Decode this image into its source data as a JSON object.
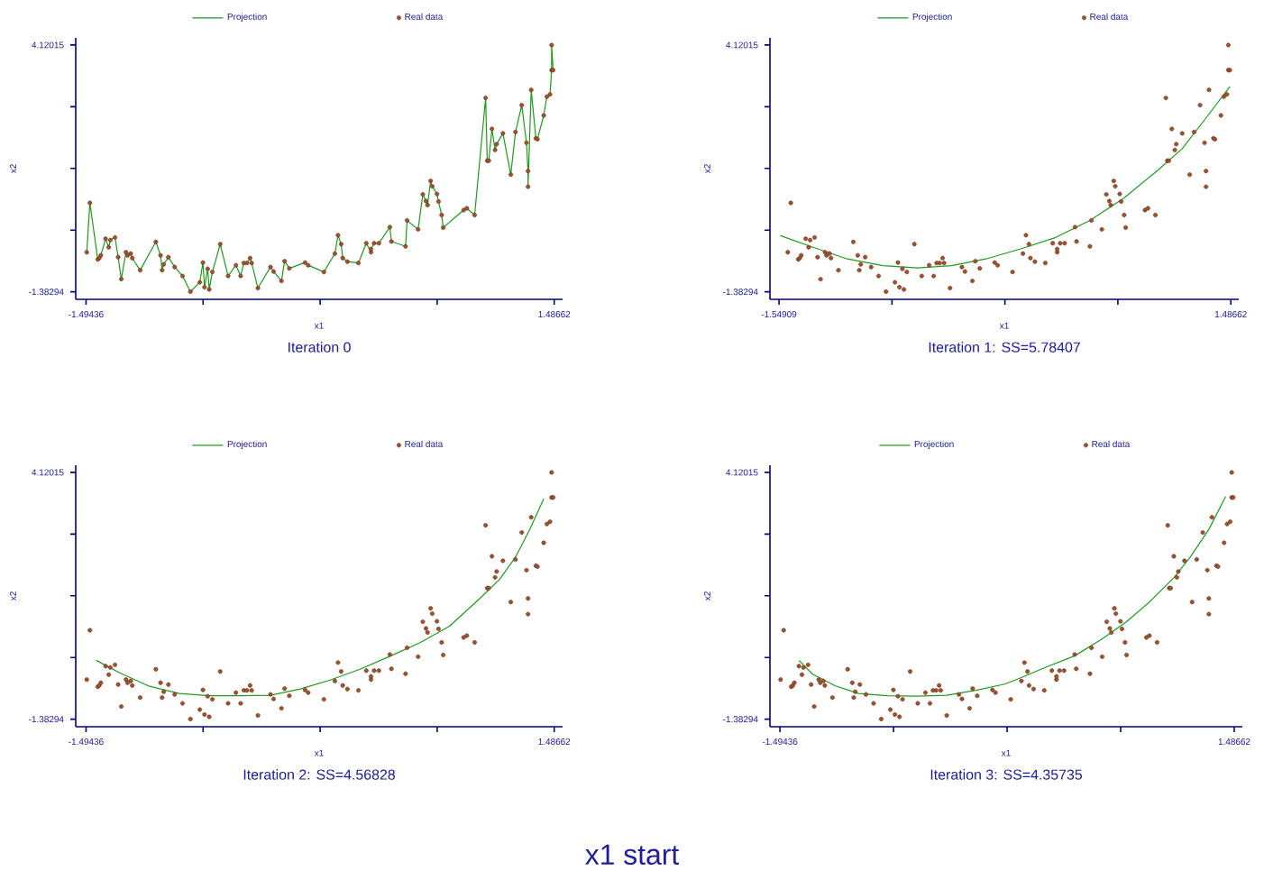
{
  "chart_data": [
    {
      "type": "scatter",
      "title": "Iteration 0",
      "xlabel": "x1",
      "ylabel": "x2",
      "xlim": [
        -1.56,
        1.54
      ],
      "ylim": [
        -1.55,
        4.28
      ],
      "xticks": [
        -1.49436,
        {
          "value": -0.74912,
          "label": null
        },
        {
          "value": -0.00387,
          "label": null
        },
        {
          "value": 0.74137,
          "label": null
        },
        1.48662
      ],
      "yticks": [
        -1.38294,
        {
          "value": -0.00717,
          "label": null
        },
        {
          "value": 1.36861,
          "label": null
        },
        {
          "value": 2.74438,
          "label": null
        },
        4.12015
      ],
      "grid": false,
      "legend": "top",
      "series": [
        {
          "name": "Projection",
          "type": "line",
          "color": "#1f9a1f",
          "marker": "none",
          "x": [
            -1.49,
            -1.47,
            -1.42,
            -1.41,
            -1.4,
            -1.37,
            -1.35,
            -1.34,
            -1.31,
            -1.29,
            -1.27,
            -1.24,
            -1.23,
            -1.21,
            -1.2,
            -1.15,
            -1.05,
            -1.02,
            -1.01,
            -1.0,
            -0.97,
            -0.93,
            -0.88,
            -0.83,
            -0.77,
            -0.75,
            -0.74,
            -0.72,
            -0.71,
            -0.69,
            -0.64,
            -0.59,
            -0.54,
            -0.51,
            -0.49,
            -0.47,
            -0.45,
            -0.44,
            -0.4,
            -0.32,
            -0.3,
            -0.25,
            -0.23,
            -0.2,
            -0.1,
            -0.08,
            0.02,
            0.09,
            0.11,
            0.13,
            0.14,
            0.17,
            0.24,
            0.29,
            0.32,
            0.32,
            0.34,
            0.37,
            0.44,
            0.45,
            0.54,
            0.55,
            0.62,
            0.65,
            0.67,
            0.68,
            0.7,
            0.71,
            0.74,
            0.75,
            0.77,
            0.78,
            0.91,
            0.93,
            0.98,
            1.05,
            1.06,
            1.07,
            1.09,
            1.11,
            1.12,
            1.16,
            1.21,
            1.24,
            1.28,
            1.31,
            1.32,
            1.32,
            1.34,
            1.37,
            1.38,
            1.42,
            1.44,
            1.46,
            1.47,
            1.47,
            1.48
          ],
          "values": [
            -0.5,
            0.6,
            -0.66,
            -0.63,
            -0.57,
            -0.2,
            -0.39,
            -0.23,
            -0.17,
            -0.61,
            -1.1,
            -0.5,
            -0.57,
            -0.53,
            -0.63,
            -0.9,
            -0.27,
            -0.57,
            -0.9,
            -0.77,
            -0.61,
            -0.83,
            -1.03,
            -1.38,
            -1.17,
            -0.73,
            -1.28,
            -0.87,
            -1.33,
            -0.94,
            -0.32,
            -1.03,
            -0.79,
            -1.03,
            -0.74,
            -0.74,
            -0.63,
            -0.74,
            -1.3,
            -0.83,
            -0.93,
            -1.14,
            -0.7,
            -0.86,
            -0.73,
            -0.79,
            -0.94,
            -0.53,
            -0.12,
            -0.32,
            -0.63,
            -0.71,
            -0.74,
            -0.3,
            -0.5,
            -0.43,
            -0.3,
            -0.3,
            0.06,
            -0.26,
            -0.37,
            0.21,
            0.01,
            0.79,
            0.64,
            0.55,
            1.09,
            0.97,
            0.8,
            0.63,
            0.33,
            0.05,
            0.44,
            0.48,
            0.33,
            2.94,
            1.54,
            1.54,
            2.25,
            1.78,
            1.91,
            2.15,
            1.23,
            2.18,
            2.78,
            1.94,
            1.31,
            0.96,
            3.12,
            2.04,
            2.02,
            2.55,
            2.97,
            3.02,
            3.56,
            4.12,
            3.56
          ]
        },
        {
          "name": "Real data",
          "type": "scatter",
          "color": "#a0522d",
          "marker": "circle",
          "x": [
            -1.49,
            -1.47,
            -1.42,
            -1.41,
            -1.4,
            -1.37,
            -1.35,
            -1.34,
            -1.31,
            -1.29,
            -1.27,
            -1.24,
            -1.23,
            -1.21,
            -1.2,
            -1.15,
            -1.05,
            -1.02,
            -1.01,
            -1.0,
            -0.97,
            -0.93,
            -0.88,
            -0.83,
            -0.77,
            -0.75,
            -0.74,
            -0.72,
            -0.71,
            -0.69,
            -0.64,
            -0.59,
            -0.54,
            -0.51,
            -0.49,
            -0.47,
            -0.45,
            -0.44,
            -0.4,
            -0.32,
            -0.3,
            -0.25,
            -0.23,
            -0.2,
            -0.1,
            -0.08,
            0.02,
            0.09,
            0.11,
            0.13,
            0.14,
            0.17,
            0.24,
            0.29,
            0.32,
            0.32,
            0.34,
            0.37,
            0.44,
            0.45,
            0.54,
            0.55,
            0.62,
            0.65,
            0.67,
            0.68,
            0.7,
            0.71,
            0.74,
            0.75,
            0.77,
            0.78,
            0.91,
            0.93,
            0.98,
            1.05,
            1.06,
            1.07,
            1.09,
            1.11,
            1.12,
            1.16,
            1.21,
            1.24,
            1.28,
            1.31,
            1.32,
            1.32,
            1.34,
            1.37,
            1.38,
            1.42,
            1.44,
            1.46,
            1.47,
            1.47,
            1.48
          ],
          "values": [
            -0.5,
            0.6,
            -0.66,
            -0.63,
            -0.57,
            -0.2,
            -0.39,
            -0.23,
            -0.17,
            -0.61,
            -1.1,
            -0.5,
            -0.57,
            -0.53,
            -0.63,
            -0.9,
            -0.27,
            -0.57,
            -0.9,
            -0.77,
            -0.61,
            -0.83,
            -1.03,
            -1.38,
            -1.17,
            -0.73,
            -1.28,
            -0.87,
            -1.33,
            -0.94,
            -0.32,
            -1.03,
            -0.79,
            -1.03,
            -0.74,
            -0.74,
            -0.63,
            -0.74,
            -1.3,
            -0.83,
            -0.93,
            -1.14,
            -0.7,
            -0.86,
            -0.73,
            -0.79,
            -0.94,
            -0.53,
            -0.12,
            -0.32,
            -0.63,
            -0.71,
            -0.74,
            -0.3,
            -0.5,
            -0.43,
            -0.3,
            -0.3,
            0.06,
            -0.26,
            -0.37,
            0.21,
            0.01,
            0.79,
            0.64,
            0.55,
            1.09,
            0.97,
            0.8,
            0.63,
            0.33,
            0.05,
            0.44,
            0.48,
            0.33,
            2.94,
            1.54,
            1.54,
            2.25,
            1.78,
            1.91,
            2.15,
            1.23,
            2.18,
            2.78,
            1.94,
            1.31,
            0.96,
            3.12,
            2.04,
            2.02,
            2.55,
            2.97,
            3.02,
            3.56,
            4.12,
            3.56
          ]
        }
      ]
    },
    {
      "type": "scatter",
      "title": "Iteration 1: SS=5.78407",
      "xlabel": "x1",
      "ylabel": "x2",
      "xlim": [
        -1.61,
        1.54
      ],
      "ylim": [
        -1.55,
        4.28
      ],
      "xticks": [
        -1.54909,
        {
          "value": -0.79016,
          "label": null
        },
        {
          "value": -0.03123,
          "label": null
        },
        {
          "value": 0.7277,
          "label": null
        },
        1.48662
      ],
      "yticks": [
        -1.38294,
        {
          "value": -0.00717,
          "label": null
        },
        {
          "value": 1.36861,
          "label": null
        },
        {
          "value": 2.74438,
          "label": null
        },
        4.12015
      ],
      "grid": false,
      "legend": "top",
      "series": [
        {
          "name": "Projection",
          "type": "line",
          "color": "#1f9a1f",
          "marker": "none",
          "x": [
            -1.54,
            -1.32,
            -1.09,
            -0.85,
            -0.62,
            -0.39,
            -0.16,
            0.08,
            0.31,
            0.54,
            0.77,
            1.0,
            1.16,
            1.31,
            1.48
          ],
          "values": [
            -0.13,
            -0.39,
            -0.65,
            -0.8,
            -0.85,
            -0.8,
            -0.65,
            -0.42,
            -0.17,
            0.21,
            0.71,
            1.34,
            1.81,
            2.45,
            3.19
          ]
        },
        {
          "name": "Real data",
          "type": "scatter",
          "color": "#a0522d",
          "marker": "circle",
          "x": [
            -1.49,
            -1.47,
            -1.42,
            -1.41,
            -1.4,
            -1.37,
            -1.35,
            -1.34,
            -1.31,
            -1.29,
            -1.27,
            -1.24,
            -1.23,
            -1.21,
            -1.2,
            -1.15,
            -1.05,
            -1.02,
            -1.01,
            -1.0,
            -0.97,
            -0.93,
            -0.88,
            -0.83,
            -0.77,
            -0.75,
            -0.74,
            -0.72,
            -0.71,
            -0.69,
            -0.64,
            -0.59,
            -0.54,
            -0.51,
            -0.49,
            -0.47,
            -0.45,
            -0.44,
            -0.4,
            -0.32,
            -0.3,
            -0.25,
            -0.23,
            -0.2,
            -0.1,
            -0.08,
            0.02,
            0.09,
            0.11,
            0.13,
            0.14,
            0.17,
            0.24,
            0.29,
            0.32,
            0.32,
            0.34,
            0.37,
            0.44,
            0.45,
            0.54,
            0.55,
            0.62,
            0.65,
            0.67,
            0.68,
            0.7,
            0.71,
            0.74,
            0.75,
            0.77,
            0.78,
            0.91,
            0.93,
            0.98,
            1.05,
            1.06,
            1.07,
            1.09,
            1.11,
            1.12,
            1.16,
            1.21,
            1.24,
            1.28,
            1.31,
            1.32,
            1.32,
            1.34,
            1.37,
            1.38,
            1.42,
            1.44,
            1.46,
            1.47,
            1.47,
            1.48
          ],
          "values": [
            -0.5,
            0.6,
            -0.66,
            -0.63,
            -0.57,
            -0.2,
            -0.39,
            -0.23,
            -0.17,
            -0.61,
            -1.1,
            -0.5,
            -0.57,
            -0.53,
            -0.63,
            -0.9,
            -0.27,
            -0.57,
            -0.9,
            -0.77,
            -0.61,
            -0.83,
            -1.03,
            -1.38,
            -1.17,
            -0.73,
            -1.28,
            -0.87,
            -1.33,
            -0.94,
            -0.32,
            -1.03,
            -0.79,
            -1.03,
            -0.74,
            -0.74,
            -0.63,
            -0.74,
            -1.3,
            -0.83,
            -0.93,
            -1.14,
            -0.7,
            -0.86,
            -0.73,
            -0.79,
            -0.94,
            -0.53,
            -0.12,
            -0.32,
            -0.63,
            -0.71,
            -0.74,
            -0.3,
            -0.5,
            -0.43,
            -0.3,
            -0.3,
            0.06,
            -0.26,
            -0.37,
            0.21,
            0.01,
            0.79,
            0.64,
            0.55,
            1.09,
            0.97,
            0.8,
            0.63,
            0.33,
            0.05,
            0.44,
            0.48,
            0.33,
            2.94,
            1.54,
            1.54,
            2.25,
            1.78,
            1.91,
            2.15,
            1.23,
            2.18,
            2.78,
            1.94,
            1.31,
            0.96,
            3.12,
            2.04,
            2.02,
            2.55,
            2.97,
            3.02,
            3.56,
            4.12,
            3.56
          ]
        }
      ]
    },
    {
      "type": "scatter",
      "title": "Iteration 2: SS=4.56828",
      "xlabel": "x1",
      "ylabel": "x2",
      "xlim": [
        -1.56,
        1.54
      ],
      "ylim": [
        -1.55,
        4.28
      ],
      "xticks": [
        -1.49436,
        {
          "value": -0.74912,
          "label": null
        },
        {
          "value": -0.00387,
          "label": null
        },
        {
          "value": 0.74137,
          "label": null
        },
        1.48662
      ],
      "yticks": [
        -1.38294,
        {
          "value": -0.00717,
          "label": null
        },
        {
          "value": 1.36861,
          "label": null
        },
        {
          "value": 2.74438,
          "label": null
        },
        4.12015
      ],
      "grid": false,
      "legend": "top",
      "series": [
        {
          "name": "Projection",
          "type": "line",
          "color": "#1f9a1f",
          "marker": "none",
          "x": [
            -1.43,
            -1.28,
            -1.09,
            -0.9,
            -0.71,
            -0.51,
            -0.32,
            -0.13,
            0.06,
            0.25,
            0.44,
            0.63,
            0.82,
            1.01,
            1.14,
            1.24,
            1.33,
            1.42
          ],
          "values": [
            -0.07,
            -0.35,
            -0.65,
            -0.81,
            -0.86,
            -0.86,
            -0.85,
            -0.71,
            -0.51,
            -0.27,
            0.02,
            0.32,
            0.69,
            1.3,
            1.74,
            2.23,
            2.84,
            3.53
          ]
        },
        {
          "name": "Real data",
          "type": "scatter",
          "color": "#a0522d",
          "marker": "circle",
          "x": [
            -1.49,
            -1.47,
            -1.42,
            -1.41,
            -1.4,
            -1.37,
            -1.35,
            -1.34,
            -1.31,
            -1.29,
            -1.27,
            -1.24,
            -1.23,
            -1.21,
            -1.2,
            -1.15,
            -1.05,
            -1.02,
            -1.01,
            -1.0,
            -0.97,
            -0.93,
            -0.88,
            -0.83,
            -0.77,
            -0.75,
            -0.74,
            -0.72,
            -0.71,
            -0.69,
            -0.64,
            -0.59,
            -0.54,
            -0.51,
            -0.49,
            -0.47,
            -0.45,
            -0.44,
            -0.4,
            -0.32,
            -0.3,
            -0.25,
            -0.23,
            -0.2,
            -0.1,
            -0.08,
            0.02,
            0.09,
            0.11,
            0.13,
            0.14,
            0.17,
            0.24,
            0.29,
            0.32,
            0.32,
            0.34,
            0.37,
            0.44,
            0.45,
            0.54,
            0.55,
            0.62,
            0.65,
            0.67,
            0.68,
            0.7,
            0.71,
            0.74,
            0.75,
            0.77,
            0.78,
            0.91,
            0.93,
            0.98,
            1.05,
            1.06,
            1.07,
            1.09,
            1.11,
            1.12,
            1.16,
            1.21,
            1.24,
            1.28,
            1.31,
            1.32,
            1.32,
            1.34,
            1.37,
            1.38,
            1.42,
            1.44,
            1.46,
            1.47,
            1.47,
            1.48
          ],
          "values": [
            -0.5,
            0.6,
            -0.66,
            -0.63,
            -0.57,
            -0.2,
            -0.39,
            -0.23,
            -0.17,
            -0.61,
            -1.1,
            -0.5,
            -0.57,
            -0.53,
            -0.63,
            -0.9,
            -0.27,
            -0.57,
            -0.9,
            -0.77,
            -0.61,
            -0.83,
            -1.03,
            -1.38,
            -1.17,
            -0.73,
            -1.28,
            -0.87,
            -1.33,
            -0.94,
            -0.32,
            -1.03,
            -0.79,
            -1.03,
            -0.74,
            -0.74,
            -0.63,
            -0.74,
            -1.3,
            -0.83,
            -0.93,
            -1.14,
            -0.7,
            -0.86,
            -0.73,
            -0.79,
            -0.94,
            -0.53,
            -0.12,
            -0.32,
            -0.63,
            -0.71,
            -0.74,
            -0.3,
            -0.5,
            -0.43,
            -0.3,
            -0.3,
            0.06,
            -0.26,
            -0.37,
            0.21,
            0.01,
            0.79,
            0.64,
            0.55,
            1.09,
            0.97,
            0.8,
            0.63,
            0.33,
            0.05,
            0.44,
            0.48,
            0.33,
            2.94,
            1.54,
            1.54,
            2.25,
            1.78,
            1.91,
            2.15,
            1.23,
            2.18,
            2.78,
            1.94,
            1.31,
            0.96,
            3.12,
            2.04,
            2.02,
            2.55,
            2.97,
            3.02,
            3.56,
            4.12,
            3.56
          ]
        }
      ]
    },
    {
      "type": "scatter",
      "title": "Iteration 3: SS=4.35735",
      "xlabel": "x1",
      "ylabel": "x2",
      "xlim": [
        -1.56,
        1.54
      ],
      "ylim": [
        -1.55,
        4.28
      ],
      "xticks": [
        -1.49436,
        {
          "value": -0.74912,
          "label": null
        },
        {
          "value": -0.00387,
          "label": null
        },
        {
          "value": 0.74137,
          "label": null
        },
        1.48662
      ],
      "yticks": [
        -1.38294,
        {
          "value": -0.00717,
          "label": null
        },
        {
          "value": 1.36861,
          "label": null
        },
        {
          "value": 2.74438,
          "label": null
        },
        4.12015
      ],
      "grid": false,
      "legend": "top",
      "annotations": [
        "x1 start"
      ],
      "series": [
        {
          "name": "Projection",
          "type": "line",
          "color": "#1f9a1f",
          "marker": "none",
          "x": [
            -1.37,
            -1.28,
            -1.13,
            -0.98,
            -0.79,
            -0.6,
            -0.4,
            -0.21,
            -0.02,
            0.05,
            0.24,
            0.44,
            0.63,
            0.78,
            0.93,
            1.09,
            1.2,
            1.32,
            1.43
          ],
          "values": [
            -0.07,
            -0.38,
            -0.64,
            -0.81,
            -0.86,
            -0.87,
            -0.85,
            -0.74,
            -0.6,
            -0.51,
            -0.24,
            0.03,
            0.43,
            0.79,
            1.23,
            1.77,
            2.24,
            2.85,
            3.58
          ]
        },
        {
          "name": "Real data",
          "type": "scatter",
          "color": "#a0522d",
          "marker": "circle",
          "x": [
            -1.49,
            -1.47,
            -1.42,
            -1.41,
            -1.4,
            -1.37,
            -1.35,
            -1.34,
            -1.31,
            -1.29,
            -1.27,
            -1.24,
            -1.23,
            -1.21,
            -1.2,
            -1.15,
            -1.05,
            -1.02,
            -1.01,
            -1.0,
            -0.97,
            -0.93,
            -0.88,
            -0.83,
            -0.77,
            -0.75,
            -0.74,
            -0.72,
            -0.71,
            -0.69,
            -0.64,
            -0.59,
            -0.54,
            -0.51,
            -0.49,
            -0.47,
            -0.45,
            -0.44,
            -0.4,
            -0.32,
            -0.3,
            -0.25,
            -0.23,
            -0.2,
            -0.1,
            -0.08,
            0.02,
            0.09,
            0.11,
            0.13,
            0.14,
            0.17,
            0.24,
            0.29,
            0.32,
            0.32,
            0.34,
            0.37,
            0.44,
            0.45,
            0.54,
            0.55,
            0.62,
            0.65,
            0.67,
            0.68,
            0.7,
            0.71,
            0.74,
            0.75,
            0.77,
            0.78,
            0.91,
            0.93,
            0.98,
            1.05,
            1.06,
            1.07,
            1.09,
            1.11,
            1.12,
            1.16,
            1.21,
            1.24,
            1.28,
            1.31,
            1.32,
            1.32,
            1.34,
            1.37,
            1.38,
            1.42,
            1.44,
            1.46,
            1.47,
            1.47,
            1.48
          ],
          "values": [
            -0.5,
            0.6,
            -0.66,
            -0.63,
            -0.57,
            -0.2,
            -0.39,
            -0.23,
            -0.17,
            -0.61,
            -1.1,
            -0.5,
            -0.57,
            -0.53,
            -0.63,
            -0.9,
            -0.27,
            -0.57,
            -0.9,
            -0.77,
            -0.61,
            -0.83,
            -1.03,
            -1.38,
            -1.17,
            -0.73,
            -1.28,
            -0.87,
            -1.33,
            -0.94,
            -0.32,
            -1.03,
            -0.79,
            -1.03,
            -0.74,
            -0.74,
            -0.63,
            -0.74,
            -1.3,
            -0.83,
            -0.93,
            -1.14,
            -0.7,
            -0.86,
            -0.73,
            -0.79,
            -0.94,
            -0.53,
            -0.12,
            -0.32,
            -0.63,
            -0.71,
            -0.74,
            -0.3,
            -0.5,
            -0.43,
            -0.3,
            -0.3,
            0.06,
            -0.26,
            -0.37,
            0.21,
            0.01,
            0.79,
            0.64,
            0.55,
            1.09,
            0.97,
            0.8,
            0.63,
            0.33,
            0.05,
            0.44,
            0.48,
            0.33,
            2.94,
            1.54,
            1.54,
            2.25,
            1.78,
            1.91,
            2.15,
            1.23,
            2.18,
            2.78,
            1.94,
            1.31,
            0.96,
            3.12,
            2.04,
            2.02,
            2.55,
            2.97,
            3.02,
            3.56,
            4.12,
            3.56
          ]
        }
      ]
    }
  ]
}
